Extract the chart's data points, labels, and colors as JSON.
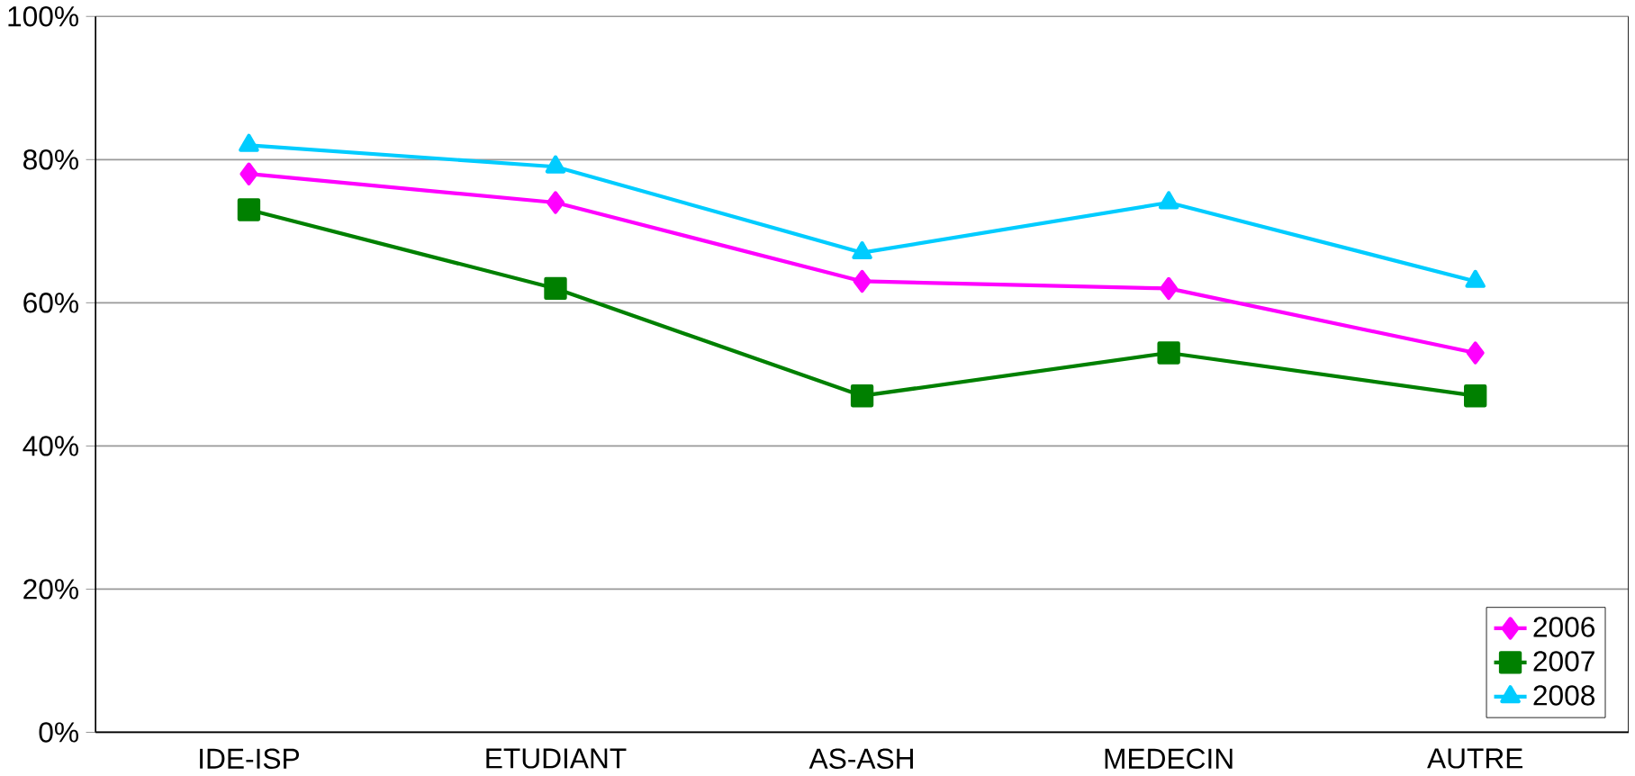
{
  "chart_data": {
    "type": "line",
    "categories": [
      "IDE-ISP",
      "ETUDIANT",
      "AS-ASH",
      "MEDECIN",
      "AUTRE"
    ],
    "series": [
      {
        "name": "2006",
        "color": "#ff00ff",
        "marker": "diamond",
        "values": [
          78,
          74,
          63,
          62,
          53
        ]
      },
      {
        "name": "2007",
        "color": "#008000",
        "marker": "square",
        "values": [
          73,
          62,
          47,
          53,
          47
        ]
      },
      {
        "name": "2008",
        "color": "#00ccff",
        "marker": "triangle",
        "values": [
          82,
          79,
          67,
          74,
          63
        ]
      }
    ],
    "ylim": [
      0,
      100
    ],
    "yticks": [
      {
        "value": 0,
        "label": "0%"
      },
      {
        "value": 20,
        "label": "20%"
      },
      {
        "value": 40,
        "label": "40%"
      },
      {
        "value": 60,
        "label": "60%"
      },
      {
        "value": 80,
        "label": "80%"
      },
      {
        "value": 100,
        "label": "100%"
      }
    ],
    "grid": "y",
    "legend": "bottom right",
    "line_style": "solid"
  }
}
